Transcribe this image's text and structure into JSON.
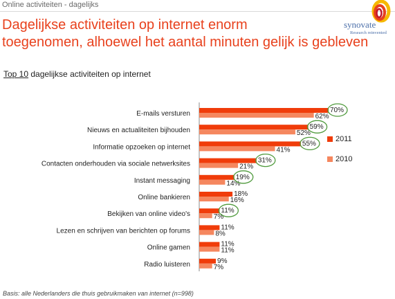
{
  "header": {
    "section_label": "Online activiteiten - dagelijks",
    "headline_line1": "Dagelijkse activiteiten op internet enorm",
    "headline_line2": "toegenomen, alhoewel het aantal minuten gelijk is gebleven"
  },
  "logo": {
    "wordmark": "synovate",
    "tagline": "Research reinvented"
  },
  "subtitle": {
    "lead": "Top 10",
    "rest": " dagelijkse activiteiten op internet"
  },
  "colors": {
    "series_2011": "#f03c0a",
    "series_2010": "#f5875f",
    "highlight_circle": "#4f9a3c",
    "headline": "#e8411d"
  },
  "chart_data": {
    "type": "bar",
    "orientation": "horizontal",
    "categories": [
      "E-mails versturen",
      "Nieuws en actualiteiten bijhouden",
      "Informatie opzoeken op internet",
      "Contacten onderhouden via sociale netwerksites",
      "Instant messaging",
      "Online bankieren",
      "Bekijken van online video's",
      "Lezen en schrijven van berichten op forums",
      "Online gamen",
      "Radio luisteren"
    ],
    "series": [
      {
        "name": "2011",
        "values": [
          70,
          59,
          55,
          31,
          19,
          18,
          11,
          11,
          11,
          9
        ]
      },
      {
        "name": "2010",
        "values": [
          62,
          52,
          41,
          21,
          14,
          16,
          7,
          8,
          11,
          7
        ]
      }
    ],
    "value_suffix": "%",
    "highlighted_2011": [
      true,
      true,
      true,
      true,
      true,
      false,
      true,
      false,
      false,
      false
    ],
    "legend_position": "right",
    "xlim": [
      0,
      70
    ]
  },
  "legend": {
    "item_2011": "2011",
    "item_2010": "2010"
  },
  "footnote": "Basis: alle Nederlanders die thuis gebruikmaken van internet (n=998)"
}
